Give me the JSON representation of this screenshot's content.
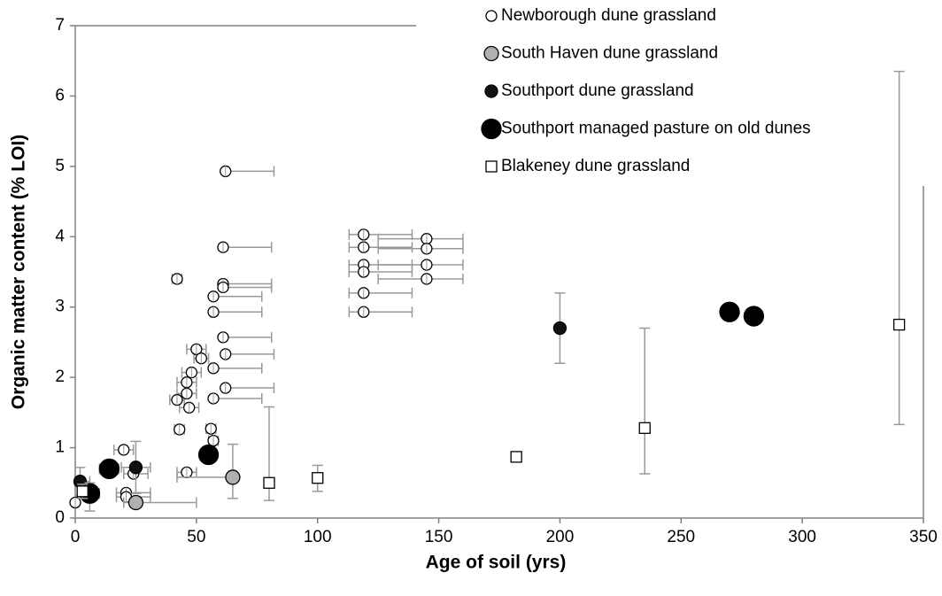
{
  "chart_data": {
    "type": "scatter",
    "xlabel": "Age of soil (yrs)",
    "ylabel": "Organic matter content (% LOI)",
    "xlim": [
      0,
      350
    ],
    "xticks": [
      0,
      50,
      100,
      150,
      200,
      250,
      300,
      350
    ],
    "ylim": [
      0,
      7
    ],
    "yticks": [
      0,
      1,
      2,
      3,
      4,
      5,
      6,
      7
    ],
    "series": [
      {
        "name": "Newborough dune grassland",
        "marker": "circle",
        "fill": "#ffffff",
        "size": 6,
        "x": [
          62,
          61,
          42,
          61,
          61,
          57,
          57,
          61,
          50,
          62,
          52,
          57,
          48,
          46,
          46,
          42,
          57,
          62,
          47,
          43,
          56,
          57,
          46,
          20,
          24,
          21,
          21,
          0,
          119,
          119,
          119,
          119,
          119,
          119,
          145,
          145,
          145,
          145
        ],
        "values": [
          4.93,
          3.85,
          3.4,
          3.33,
          3.28,
          3.15,
          2.93,
          2.57,
          2.4,
          2.33,
          2.27,
          2.13,
          2.07,
          1.93,
          1.77,
          1.68,
          1.7,
          1.85,
          1.57,
          1.26,
          1.27,
          1.1,
          0.65,
          0.97,
          0.63,
          0.36,
          0.3,
          0.22,
          4.03,
          3.85,
          3.6,
          3.5,
          3.2,
          2.93,
          3.97,
          3.83,
          3.6,
          3.4
        ],
        "xerr_minus": [
          null,
          null,
          2,
          null,
          null,
          null,
          null,
          null,
          4,
          null,
          3,
          null,
          4,
          4,
          4,
          3,
          null,
          null,
          4,
          2,
          2,
          2,
          4,
          4,
          4,
          4,
          4,
          null,
          6,
          6,
          6,
          6,
          6,
          6,
          20,
          20,
          20,
          20
        ],
        "xerr_plus": [
          20,
          20,
          2,
          20,
          20,
          20,
          20,
          20,
          4,
          20,
          3,
          20,
          4,
          4,
          4,
          3,
          20,
          20,
          4,
          2,
          2,
          2,
          4,
          4,
          6,
          10,
          10,
          null,
          20,
          20,
          20,
          20,
          20,
          20,
          15,
          15,
          15,
          15
        ]
      },
      {
        "name": "South Haven dune grassland",
        "marker": "circle",
        "fill": "#b0b0b0",
        "size": 8,
        "x": [
          25,
          65
        ],
        "values": [
          0.22,
          0.58
        ],
        "xerr_minus": [
          5,
          23
        ],
        "xerr_plus": [
          25,
          null
        ],
        "yerr_minus": [
          null,
          0.3
        ],
        "yerr_plus": [
          null,
          0.47
        ]
      },
      {
        "name": "Southport dune grassland",
        "marker": "circle",
        "fill": "#111111",
        "size": 7,
        "x": [
          200,
          2,
          25
        ],
        "values": [
          2.7,
          0.52,
          0.72
        ],
        "yerr_minus": [
          0.5,
          0.2,
          0.37
        ],
        "yerr_plus": [
          0.5,
          0.2,
          0.37
        ],
        "xerr_minus": [
          null,
          2,
          6
        ],
        "xerr_plus": [
          null,
          4,
          6
        ]
      },
      {
        "name": "Southport managed pasture on old dunes",
        "marker": "circle",
        "fill": "#000000",
        "size": 11,
        "x": [
          270,
          280,
          14,
          55,
          6
        ],
        "values": [
          2.93,
          2.87,
          0.7,
          0.9,
          0.35
        ],
        "yerr_minus": [
          null,
          null,
          null,
          null,
          0.25
        ],
        "yerr_plus": [
          null,
          null,
          null,
          null,
          0.15
        ],
        "xerr_minus": [
          null,
          null,
          4,
          null,
          4
        ],
        "xerr_plus": [
          null,
          null,
          4,
          null,
          4
        ]
      },
      {
        "name": "Blakeney dune grassland",
        "marker": "square",
        "fill": "#ffffff",
        "size": 6,
        "x": [
          340,
          235,
          182,
          100,
          80,
          3
        ],
        "values": [
          2.75,
          1.28,
          0.87,
          0.57,
          0.5,
          0.38
        ],
        "yerr_minus": [
          1.42,
          0.65,
          0.05,
          0.19,
          0.25,
          0.1
        ],
        "yerr_plus": [
          3.6,
          1.42,
          0.05,
          0.18,
          1.08,
          0.1
        ]
      }
    ]
  }
}
